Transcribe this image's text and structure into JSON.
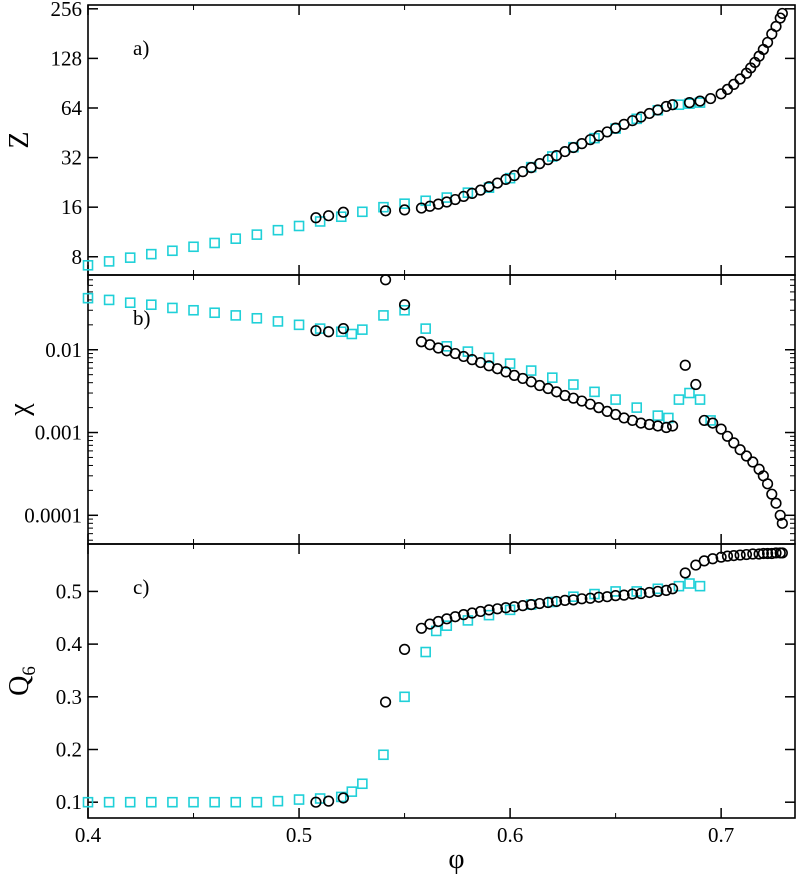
{
  "chart_data": [
    {
      "type": "scatter",
      "panel_label": "a)",
      "ylabel": "Z",
      "yscale": "log2",
      "ylim": [
        6.2,
        270
      ],
      "yticks": [
        8,
        16,
        32,
        64,
        128,
        256
      ],
      "ytick_labels": [
        "8",
        "16",
        "32",
        "64",
        "128",
        "256"
      ],
      "series": [
        {
          "name": "squares",
          "marker": "square",
          "color": "#1fd0d8",
          "x": [
            0.4,
            0.41,
            0.42,
            0.43,
            0.44,
            0.45,
            0.46,
            0.47,
            0.48,
            0.49,
            0.5,
            0.51,
            0.52,
            0.53,
            0.54,
            0.55,
            0.56,
            0.57,
            0.58,
            0.59,
            0.6,
            0.61,
            0.62,
            0.63,
            0.64,
            0.65,
            0.66,
            0.67,
            0.68,
            0.685,
            0.69
          ],
          "y": [
            7.1,
            7.5,
            7.9,
            8.3,
            8.7,
            9.2,
            9.7,
            10.3,
            10.9,
            11.6,
            12.3,
            13.1,
            14.0,
            15.0,
            16.0,
            16.8,
            17.5,
            18.3,
            19.6,
            21.0,
            24.0,
            28.0,
            32.5,
            37.0,
            42.0,
            48.0,
            55.0,
            62.0,
            67.0,
            68.0,
            69.0
          ]
        },
        {
          "name": "circles",
          "marker": "circle",
          "color": "#000000",
          "x": [
            0.508,
            0.514,
            0.521,
            0.541,
            0.55,
            0.558,
            0.562,
            0.566,
            0.57,
            0.574,
            0.578,
            0.582,
            0.586,
            0.59,
            0.594,
            0.598,
            0.602,
            0.606,
            0.61,
            0.614,
            0.618,
            0.622,
            0.626,
            0.63,
            0.634,
            0.638,
            0.642,
            0.646,
            0.65,
            0.654,
            0.658,
            0.662,
            0.666,
            0.67,
            0.674,
            0.677,
            0.685,
            0.69,
            0.695,
            0.7,
            0.703,
            0.706,
            0.709,
            0.712,
            0.714,
            0.716,
            0.718,
            0.72,
            0.722,
            0.724,
            0.726,
            0.728,
            0.729
          ],
          "y": [
            13.8,
            14.2,
            14.9,
            15.2,
            15.4,
            15.8,
            16.2,
            16.7,
            17.2,
            17.8,
            18.6,
            19.4,
            20.3,
            21.3,
            22.4,
            23.6,
            24.9,
            26.3,
            27.8,
            29.4,
            31.1,
            32.9,
            34.8,
            36.8,
            38.9,
            41.1,
            43.4,
            45.8,
            48.3,
            50.9,
            53.6,
            56.4,
            59.3,
            62.3,
            65.4,
            67.0,
            69.0,
            70.5,
            73.0,
            78.0,
            83.0,
            89.0,
            96.0,
            104.0,
            112.0,
            121.0,
            132.0,
            145.0,
            160.0,
            180.0,
            200.0,
            225.0,
            240.0
          ]
        }
      ]
    },
    {
      "type": "scatter",
      "panel_label": "b)",
      "ylabel": "χ",
      "yscale": "log10",
      "ylim": [
        4.5e-05,
        0.08
      ],
      "yticks": [
        0.0001,
        0.001,
        0.01
      ],
      "ytick_labels": [
        "0.0001",
        "0.001",
        "0.01"
      ],
      "series": [
        {
          "name": "squares",
          "marker": "square",
          "color": "#1fd0d8",
          "x": [
            0.4,
            0.41,
            0.42,
            0.43,
            0.44,
            0.45,
            0.46,
            0.47,
            0.48,
            0.49,
            0.5,
            0.51,
            0.52,
            0.525,
            0.53,
            0.54,
            0.55,
            0.56,
            0.57,
            0.58,
            0.59,
            0.6,
            0.61,
            0.62,
            0.63,
            0.64,
            0.65,
            0.66,
            0.67,
            0.675,
            0.68,
            0.685,
            0.69,
            0.695
          ],
          "y": [
            0.042,
            0.04,
            0.037,
            0.035,
            0.032,
            0.03,
            0.028,
            0.026,
            0.024,
            0.022,
            0.02,
            0.018,
            0.0165,
            0.0155,
            0.0175,
            0.026,
            0.03,
            0.018,
            0.011,
            0.0095,
            0.008,
            0.0068,
            0.0056,
            0.0046,
            0.0038,
            0.0031,
            0.0025,
            0.002,
            0.0016,
            0.0015,
            0.0025,
            0.003,
            0.0025,
            0.0014
          ]
        },
        {
          "name": "circles",
          "marker": "circle",
          "color": "#000000",
          "x": [
            0.508,
            0.514,
            0.521,
            0.541,
            0.55,
            0.558,
            0.562,
            0.566,
            0.57,
            0.574,
            0.578,
            0.582,
            0.586,
            0.59,
            0.594,
            0.598,
            0.602,
            0.606,
            0.61,
            0.614,
            0.618,
            0.622,
            0.626,
            0.63,
            0.634,
            0.638,
            0.642,
            0.646,
            0.65,
            0.654,
            0.658,
            0.662,
            0.666,
            0.67,
            0.674,
            0.677,
            0.683,
            0.688,
            0.692,
            0.696,
            0.7,
            0.703,
            0.706,
            0.709,
            0.712,
            0.715,
            0.718,
            0.72,
            0.722,
            0.724,
            0.726,
            0.728,
            0.729
          ],
          "y": [
            0.017,
            0.0165,
            0.018,
            0.07,
            0.035,
            0.0125,
            0.0115,
            0.0105,
            0.0097,
            0.009,
            0.0083,
            0.0076,
            0.007,
            0.0064,
            0.0059,
            0.0054,
            0.0049,
            0.0045,
            0.0041,
            0.0037,
            0.0034,
            0.0031,
            0.0028,
            0.0026,
            0.0024,
            0.0022,
            0.002,
            0.0018,
            0.00165,
            0.0015,
            0.0014,
            0.0013,
            0.00125,
            0.0012,
            0.00115,
            0.0012,
            0.0065,
            0.0038,
            0.0014,
            0.0013,
            0.0011,
            0.0009,
            0.00075,
            0.00062,
            0.00052,
            0.00044,
            0.00036,
            0.0003,
            0.00024,
            0.00018,
            0.00014,
            0.0001,
            8e-05
          ]
        }
      ]
    },
    {
      "type": "scatter",
      "panel_label": "c)",
      "ylabel": "Q",
      "ylabel_sub": "6",
      "yscale": "linear",
      "ylim": [
        0.07,
        0.59
      ],
      "yticks": [
        0.1,
        0.2,
        0.3,
        0.4,
        0.5
      ],
      "ytick_labels": [
        "0.1",
        "0.2",
        "0.3",
        "0.4",
        "0.5"
      ],
      "series": [
        {
          "name": "squares",
          "marker": "square",
          "color": "#1fd0d8",
          "x": [
            0.4,
            0.41,
            0.42,
            0.43,
            0.44,
            0.45,
            0.46,
            0.47,
            0.48,
            0.49,
            0.5,
            0.51,
            0.52,
            0.525,
            0.53,
            0.54,
            0.55,
            0.56,
            0.565,
            0.57,
            0.58,
            0.59,
            0.6,
            0.61,
            0.62,
            0.63,
            0.64,
            0.65,
            0.66,
            0.67,
            0.68,
            0.685,
            0.69
          ],
          "y": [
            0.1,
            0.1,
            0.1,
            0.1,
            0.1,
            0.1,
            0.1,
            0.1,
            0.1,
            0.102,
            0.105,
            0.107,
            0.11,
            0.12,
            0.135,
            0.19,
            0.3,
            0.385,
            0.425,
            0.435,
            0.445,
            0.455,
            0.465,
            0.475,
            0.48,
            0.49,
            0.495,
            0.5,
            0.5,
            0.505,
            0.51,
            0.515,
            0.51
          ]
        },
        {
          "name": "circles",
          "marker": "circle",
          "color": "#000000",
          "x": [
            0.508,
            0.514,
            0.521,
            0.541,
            0.55,
            0.558,
            0.562,
            0.566,
            0.57,
            0.574,
            0.578,
            0.582,
            0.586,
            0.59,
            0.594,
            0.598,
            0.602,
            0.606,
            0.61,
            0.614,
            0.618,
            0.622,
            0.626,
            0.63,
            0.634,
            0.638,
            0.642,
            0.646,
            0.65,
            0.654,
            0.658,
            0.662,
            0.666,
            0.67,
            0.674,
            0.677,
            0.683,
            0.688,
            0.692,
            0.696,
            0.7,
            0.703,
            0.706,
            0.709,
            0.712,
            0.715,
            0.718,
            0.72,
            0.722,
            0.724,
            0.726,
            0.728,
            0.729
          ],
          "y": [
            0.1,
            0.102,
            0.108,
            0.29,
            0.39,
            0.43,
            0.438,
            0.443,
            0.448,
            0.452,
            0.456,
            0.459,
            0.462,
            0.465,
            0.467,
            0.469,
            0.471,
            0.473,
            0.475,
            0.477,
            0.479,
            0.481,
            0.483,
            0.484,
            0.486,
            0.487,
            0.489,
            0.49,
            0.492,
            0.493,
            0.495,
            0.496,
            0.498,
            0.5,
            0.502,
            0.505,
            0.535,
            0.55,
            0.558,
            0.562,
            0.565,
            0.567,
            0.568,
            0.569,
            0.57,
            0.571,
            0.571,
            0.572,
            0.572,
            0.572,
            0.573,
            0.573,
            0.573
          ]
        }
      ]
    }
  ],
  "shared_x": {
    "xlabel": "φ",
    "xlim": [
      0.4,
      0.735
    ],
    "xticks": [
      0.4,
      0.5,
      0.6,
      0.7
    ],
    "xtick_labels": [
      "0.4",
      "0.5",
      "0.6",
      "0.7"
    ]
  }
}
